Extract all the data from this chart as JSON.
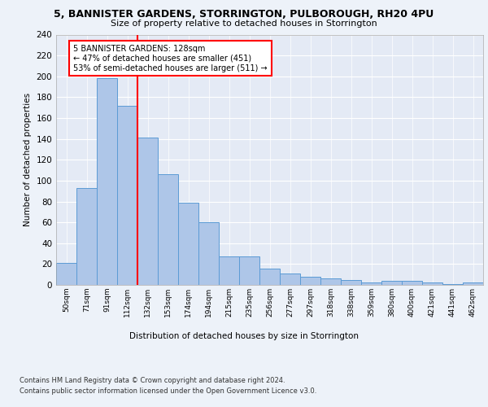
{
  "title1": "5, BANNISTER GARDENS, STORRINGTON, PULBOROUGH, RH20 4PU",
  "title2": "Size of property relative to detached houses in Storrington",
  "xlabel": "Distribution of detached houses by size in Storrington",
  "ylabel": "Number of detached properties",
  "categories": [
    "50sqm",
    "71sqm",
    "91sqm",
    "112sqm",
    "132sqm",
    "153sqm",
    "174sqm",
    "194sqm",
    "215sqm",
    "235sqm",
    "256sqm",
    "277sqm",
    "297sqm",
    "318sqm",
    "338sqm",
    "359sqm",
    "380sqm",
    "400sqm",
    "421sqm",
    "441sqm",
    "462sqm"
  ],
  "values": [
    21,
    93,
    198,
    172,
    141,
    106,
    79,
    60,
    27,
    27,
    16,
    11,
    8,
    6,
    5,
    2,
    4,
    4,
    2,
    1,
    2
  ],
  "bar_color": "#aec6e8",
  "bar_edge_color": "#5b9bd5",
  "vline_x_idx": 3,
  "vline_color": "red",
  "annotation_text": "5 BANNISTER GARDENS: 128sqm\n← 47% of detached houses are smaller (451)\n53% of semi-detached houses are larger (511) →",
  "ylim": [
    0,
    240
  ],
  "yticks": [
    0,
    20,
    40,
    60,
    80,
    100,
    120,
    140,
    160,
    180,
    200,
    220,
    240
  ],
  "footnote1": "Contains HM Land Registry data © Crown copyright and database right 2024.",
  "footnote2": "Contains public sector information licensed under the Open Government Licence v3.0.",
  "bg_color": "#edf2f9",
  "plot_bg_color": "#e4eaf5"
}
